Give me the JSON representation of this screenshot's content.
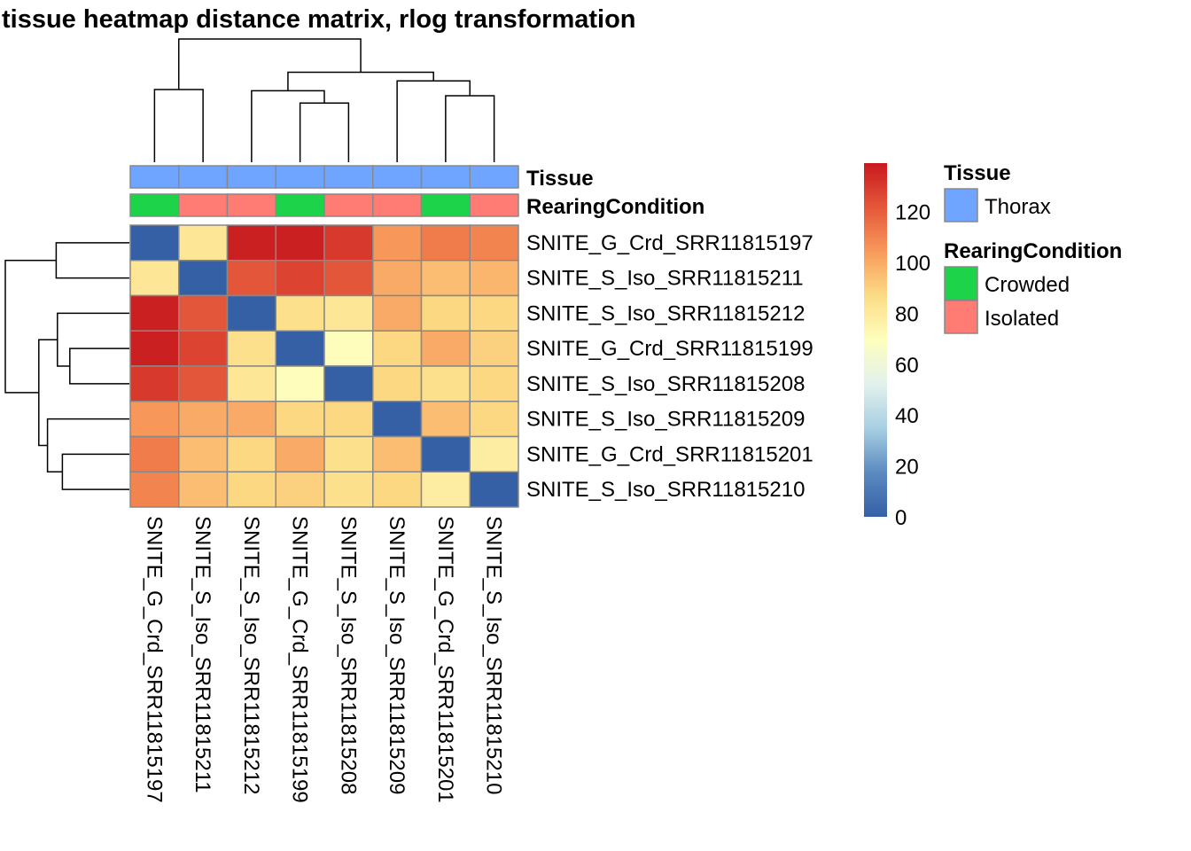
{
  "chart_data": {
    "type": "heatmap",
    "title": "tissue heatmap distance matrix, rlog transformation",
    "samples": [
      "SNITE_G_Crd_SRR11815197",
      "SNITE_S_Iso_SRR11815211",
      "SNITE_S_Iso_SRR11815212",
      "SNITE_G_Crd_SRR11815199",
      "SNITE_S_Iso_SRR11815208",
      "SNITE_S_Iso_SRR11815209",
      "SNITE_G_Crd_SRR11815201",
      "SNITE_S_Iso_SRR11815210"
    ],
    "values": [
      [
        0,
        82,
        137,
        137,
        130,
        105,
        112,
        110
      ],
      [
        82,
        0,
        122,
        127,
        122,
        100,
        95,
        97
      ],
      [
        137,
        122,
        0,
        85,
        82,
        100,
        88,
        88
      ],
      [
        137,
        127,
        85,
        0,
        70,
        88,
        100,
        90
      ],
      [
        130,
        122,
        82,
        70,
        0,
        88,
        85,
        88
      ],
      [
        105,
        100,
        100,
        88,
        88,
        0,
        95,
        88
      ],
      [
        112,
        95,
        88,
        100,
        85,
        95,
        0,
        78
      ],
      [
        110,
        95,
        88,
        90,
        85,
        88,
        78,
        0
      ]
    ],
    "color_scale": {
      "range": [
        0,
        139
      ],
      "ticks": [
        0,
        20,
        40,
        60,
        80,
        100,
        120
      ],
      "stops": [
        "#3560A6",
        "#5B8AC0",
        "#A8CFE3",
        "#E2F1EC",
        "#FEFEBE",
        "#FCDC86",
        "#F89A5B",
        "#E5573A",
        "#C8191E"
      ]
    },
    "dendrogram": {
      "note_leaves": "leaf indices refer to samples order (1-based, negative); positive refers to earlier merge",
      "merges": [
        {
          "a": -4,
          "b": -5,
          "height": 0.48
        },
        {
          "a": -3,
          "b": 1,
          "height": 0.58
        },
        {
          "a": -7,
          "b": -8,
          "height": 0.54
        },
        {
          "a": -6,
          "b": 3,
          "height": 0.66
        },
        {
          "a": -1,
          "b": -2,
          "height": 0.59
        },
        {
          "a": 2,
          "b": 4,
          "height": 0.73
        },
        {
          "a": 5,
          "b": 6,
          "height": 1.0
        }
      ]
    },
    "annotations": [
      {
        "name": "Tissue",
        "values": [
          "Thorax",
          "Thorax",
          "Thorax",
          "Thorax",
          "Thorax",
          "Thorax",
          "Thorax",
          "Thorax"
        ]
      },
      {
        "name": "RearingCondition",
        "values": [
          "Crowded",
          "Isolated",
          "Isolated",
          "Crowded",
          "Isolated",
          "Isolated",
          "Crowded",
          "Isolated"
        ]
      }
    ],
    "legend": {
      "groups": [
        {
          "title": "Tissue",
          "items": [
            {
              "label": "Thorax",
              "color": "#6FA5FF"
            }
          ]
        },
        {
          "title": "RearingCondition",
          "items": [
            {
              "label": "Crowded",
              "color": "#1DD34A"
            },
            {
              "label": "Isolated",
              "color": "#FF7C74"
            }
          ]
        }
      ],
      "placement": "right"
    }
  }
}
